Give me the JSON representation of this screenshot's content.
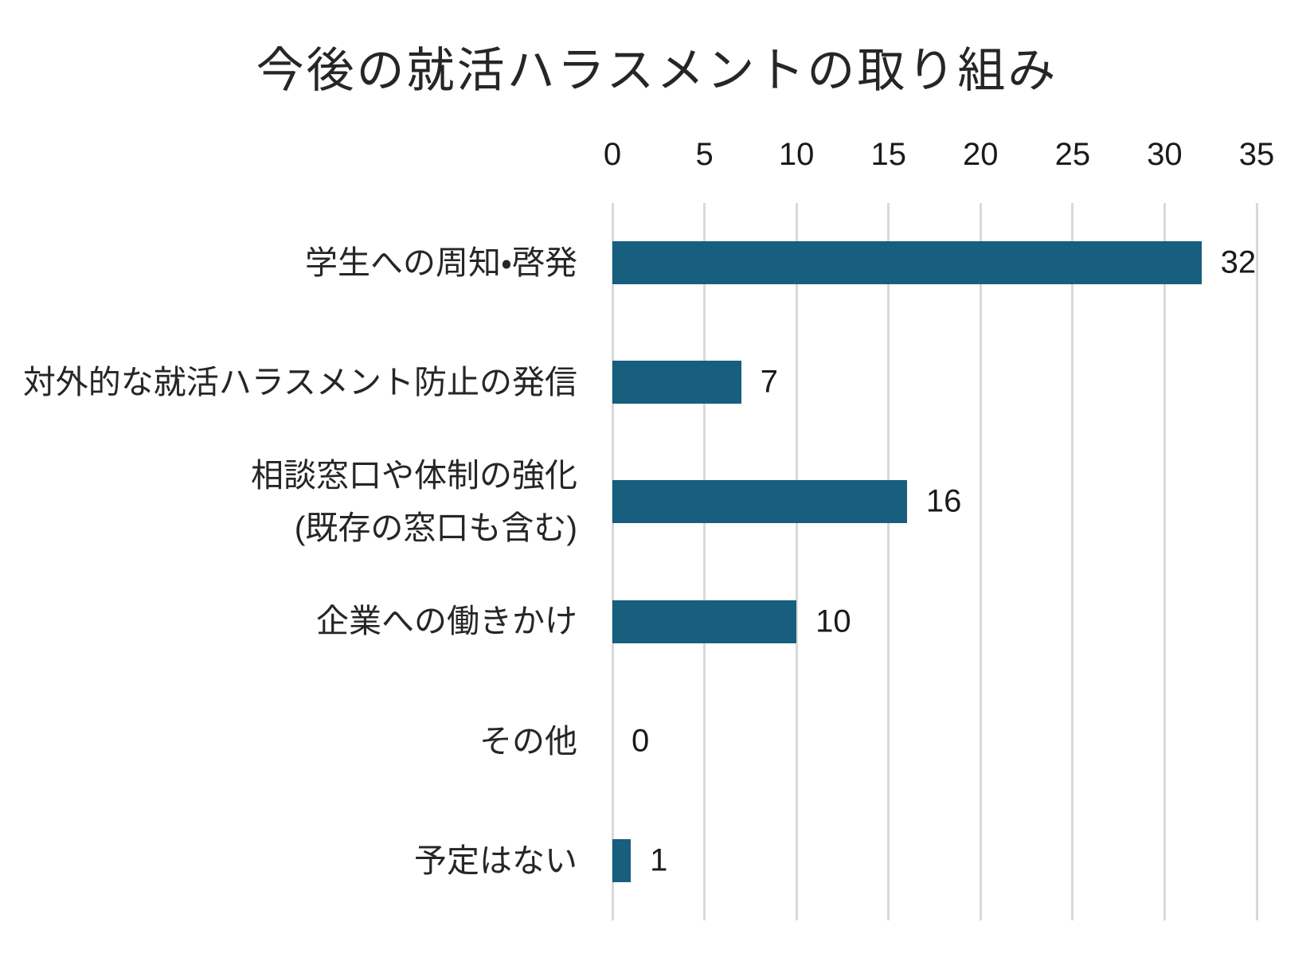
{
  "chart_data": {
    "type": "bar",
    "orientation": "horizontal",
    "title": "今後の就活ハラスメントの取り組み",
    "categories": [
      "学生への周知・啓発",
      "対外的な就活ハラスメント防止の発信",
      "相談窓口や体制の強化\n(既存の窓口も含む)",
      "企業への働きかけ",
      "その他",
      "予定はない"
    ],
    "values": [
      32,
      7,
      16,
      10,
      0,
      1
    ],
    "value_labels": [
      "32",
      "7",
      "16",
      "10",
      "0",
      "1"
    ],
    "x_ticks": [
      "0",
      "5",
      "10",
      "15",
      "20",
      "25",
      "30",
      "35"
    ],
    "xlim": [
      0,
      35
    ],
    "xlabel": "",
    "ylabel": "",
    "grid": "vertical-gridlines-on",
    "legend": "none",
    "colors": {
      "bar": "#175E7F",
      "gridline": "#D9D9D9",
      "title_text": "#262626",
      "category_text": "#262626",
      "value_text": "#1A1A1A",
      "background": "#FFFFFF"
    }
  }
}
